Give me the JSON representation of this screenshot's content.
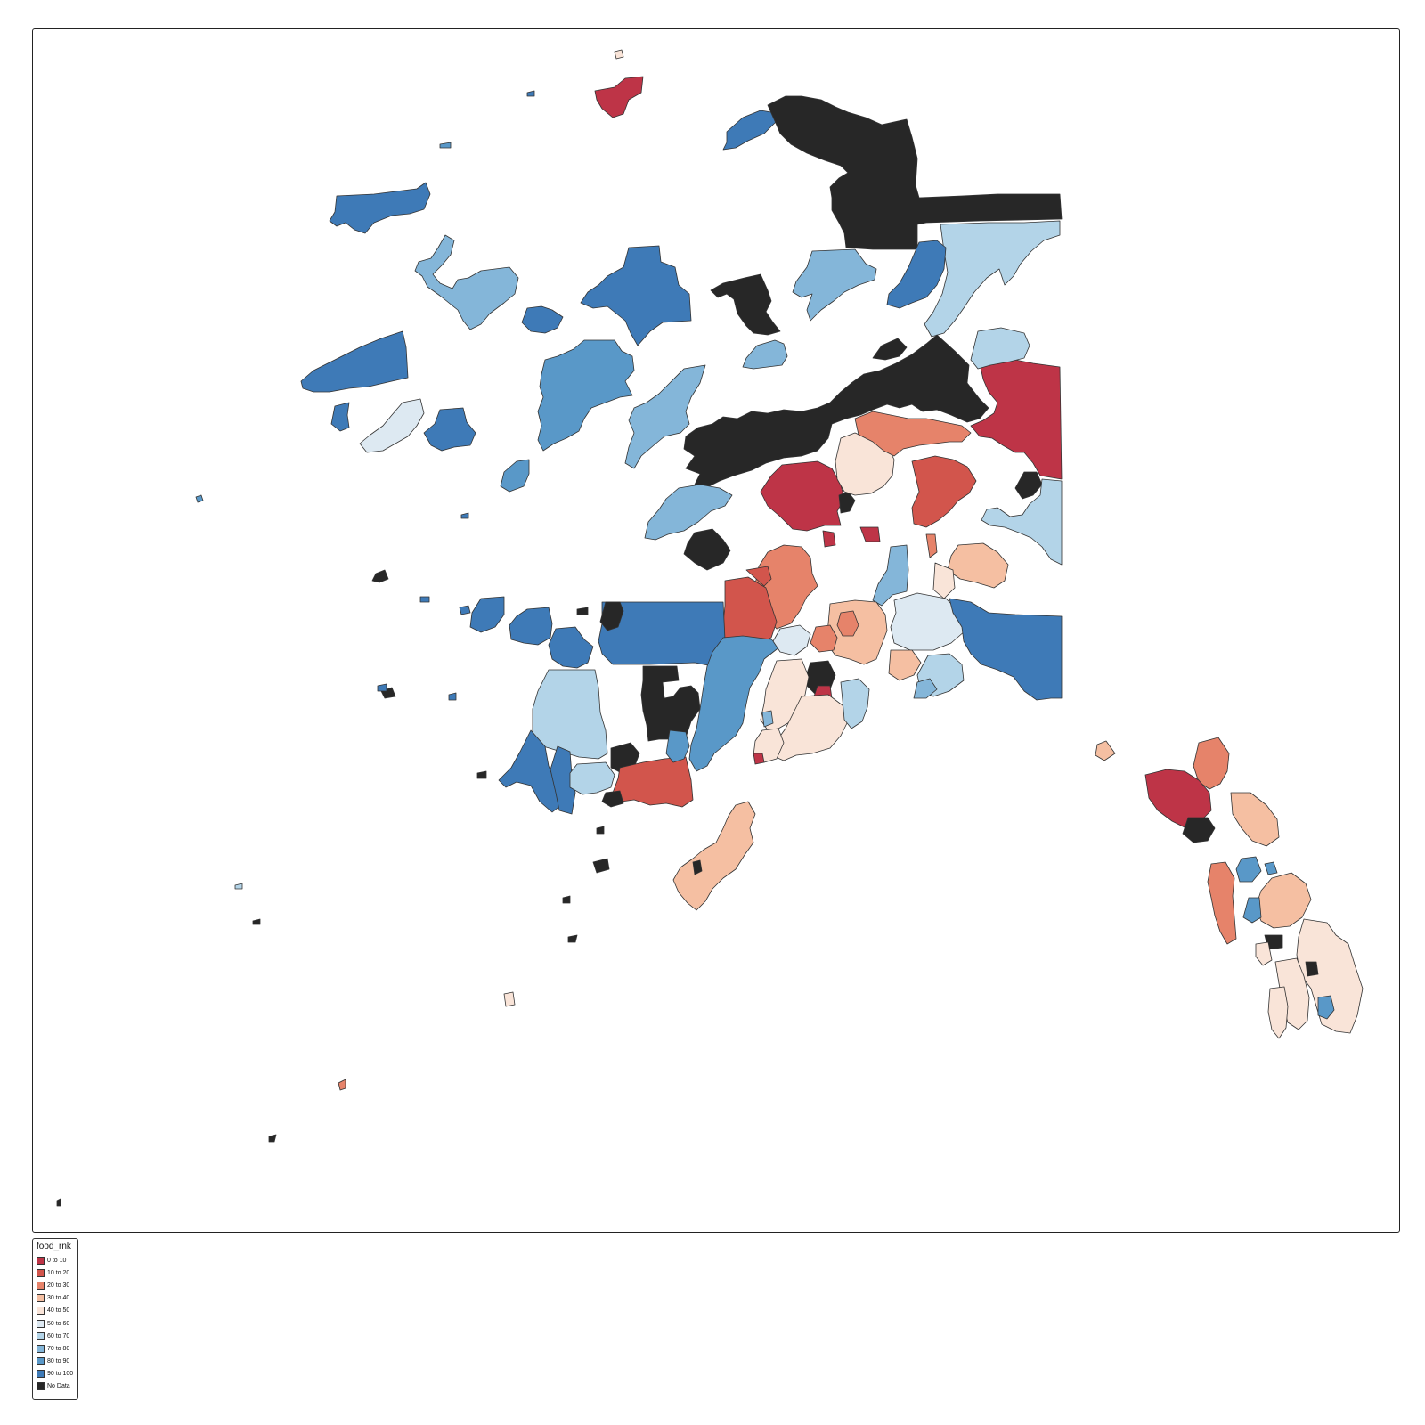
{
  "legend": {
    "title": "food_rnk",
    "items": [
      {
        "label": "0 to 10",
        "color": "#be3447"
      },
      {
        "label": "10 to 20",
        "color": "#d2554c"
      },
      {
        "label": "20 to 30",
        "color": "#e6836a"
      },
      {
        "label": "30 to 40",
        "color": "#f5bfa2"
      },
      {
        "label": "40 to 50",
        "color": "#f9e4d8"
      },
      {
        "label": "50 to 60",
        "color": "#dde9f2"
      },
      {
        "label": "60 to 70",
        "color": "#b3d4e8"
      },
      {
        "label": "70 to 80",
        "color": "#84b6d9"
      },
      {
        "label": "80 to 90",
        "color": "#5998c8"
      },
      {
        "label": "90 to 100",
        "color": "#3e7ab7"
      },
      {
        "label": "No Data",
        "color": "#272727"
      }
    ]
  },
  "map": {
    "variable": "food_rnk",
    "regions": [
      {
        "class": "90 to 100",
        "color": "#3e7ab7"
      },
      {
        "class": "80 to 90",
        "color": "#5998c8"
      },
      {
        "class": "70 to 80",
        "color": "#84b6d9"
      },
      {
        "class": "60 to 70",
        "color": "#b3d4e8"
      },
      {
        "class": "50 to 60",
        "color": "#dde9f2"
      },
      {
        "class": "40 to 50",
        "color": "#f9e4d8"
      },
      {
        "class": "30 to 40",
        "color": "#f5bfa2"
      },
      {
        "class": "20 to 30",
        "color": "#e6836a"
      },
      {
        "class": "10 to 20",
        "color": "#d2554c"
      },
      {
        "class": "0 to 10",
        "color": "#be3447"
      },
      {
        "class": "No Data",
        "color": "#272727"
      }
    ]
  }
}
